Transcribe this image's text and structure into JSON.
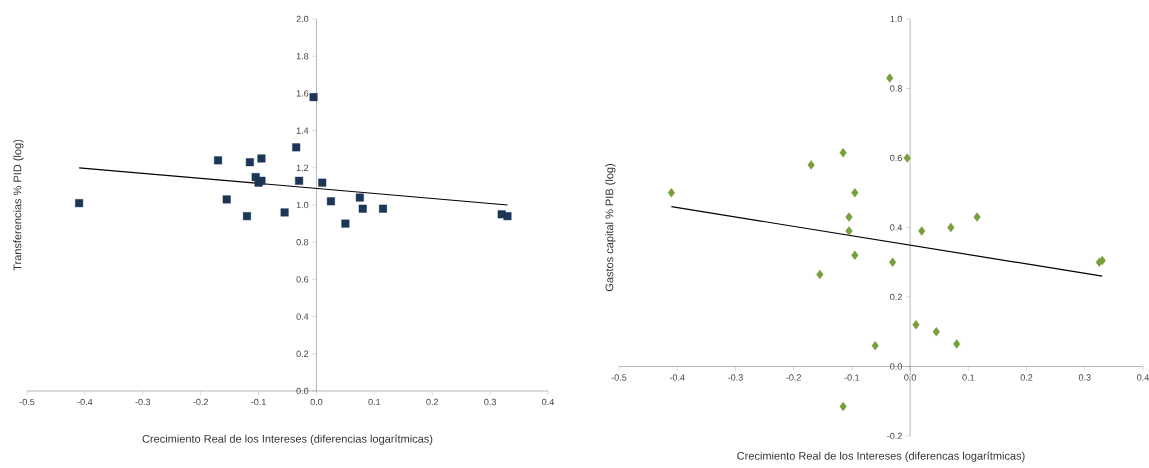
{
  "chart_data": [
    {
      "type": "scatter",
      "xlabel": "Crecimiento Real de los Intereses  (diferencias logarítmicas)",
      "ylabel": "Transferencias  %  PID (log)",
      "xlim": [
        -0.5,
        0.4
      ],
      "ylim": [
        0,
        2
      ],
      "xticks": [
        {
          "value": -0.5,
          "label": "-0.5"
        },
        {
          "value": -0.4,
          "label": "-0.4"
        },
        {
          "value": -0.3,
          "label": "-0.3"
        },
        {
          "value": -0.2,
          "label": "-0.2"
        },
        {
          "value": -0.1,
          "label": "-0.1"
        },
        {
          "value": 0,
          "label": "0.0"
        },
        {
          "value": 0.1,
          "label": "0.1"
        },
        {
          "value": 0.2,
          "label": "0.2"
        },
        {
          "value": 0.3,
          "label": "0.3"
        },
        {
          "value": 0.4,
          "label": "0.4"
        }
      ],
      "yticks": [
        {
          "value": 0,
          "label": "0.0"
        },
        {
          "value": 0.2,
          "label": "0.2"
        },
        {
          "value": 0.4,
          "label": "0.4"
        },
        {
          "value": 0.6,
          "label": "0.6"
        },
        {
          "value": 0.8,
          "label": "0.8"
        },
        {
          "value": 1,
          "label": "1.0"
        },
        {
          "value": 1.2,
          "label": "1.2"
        },
        {
          "value": 1.4,
          "label": "1.4"
        },
        {
          "value": 1.6,
          "label": "1.6"
        },
        {
          "value": 1.8,
          "label": "1.8"
        },
        {
          "value": 2,
          "label": "2.0"
        }
      ],
      "series": [
        {
          "marker": "square",
          "color": "#1b3656",
          "x": [
            -0.41,
            -0.17,
            -0.155,
            -0.12,
            -0.115,
            -0.105,
            -0.1,
            -0.095,
            -0.095,
            -0.055,
            -0.035,
            -0.03,
            -0.005,
            0.01,
            0.025,
            0.05,
            0.075,
            0.08,
            0.115,
            0.32,
            0.33
          ],
          "values": [
            1.01,
            1.24,
            1.03,
            0.94,
            1.23,
            1.15,
            1.12,
            1.25,
            1.13,
            0.96,
            1.31,
            1.13,
            1.58,
            1.12,
            1.02,
            0.9,
            1.04,
            0.98,
            0.98,
            0.95,
            0.94
          ]
        },
        {
          "type": "line",
          "color": "#000000",
          "x": [
            -0.41,
            0.33
          ],
          "values": [
            1.2,
            1.0
          ]
        }
      ]
    },
    {
      "type": "scatter",
      "xlabel": "Crecimiento Real de los Intereses (diferencas logarítmicas)",
      "ylabel": "Gastos capital % PIB (log)",
      "xlim": [
        -0.5,
        0.4
      ],
      "ylim": [
        -0.2,
        1
      ],
      "xticks": [
        {
          "value": -0.5,
          "label": "-0.5"
        },
        {
          "value": -0.4,
          "label": "-0.4"
        },
        {
          "value": -0.3,
          "label": "-0.3"
        },
        {
          "value": -0.2,
          "label": "-0.2"
        },
        {
          "value": -0.1,
          "label": "-0.1"
        },
        {
          "value": 0,
          "label": "0.0"
        },
        {
          "value": 0.1,
          "label": "0.1"
        },
        {
          "value": 0.2,
          "label": "0.2"
        },
        {
          "value": 0.3,
          "label": "0.3"
        },
        {
          "value": 0.4,
          "label": "0.4"
        }
      ],
      "yticks": [
        {
          "value": -0.2,
          "label": "-0.2"
        },
        {
          "value": 0,
          "label": "0.0"
        },
        {
          "value": 0.2,
          "label": "0.2"
        },
        {
          "value": 0.4,
          "label": "0.4"
        },
        {
          "value": 0.6,
          "label": "0.6"
        },
        {
          "value": 0.8,
          "label": "0.8"
        },
        {
          "value": 1,
          "label": "1.0"
        }
      ],
      "series": [
        {
          "marker": "diamond",
          "color": "#77a03c",
          "x": [
            -0.41,
            -0.17,
            -0.155,
            -0.115,
            -0.105,
            -0.105,
            -0.095,
            -0.095,
            -0.115,
            -0.06,
            -0.035,
            -0.03,
            -0.005,
            0.01,
            0.02,
            0.045,
            0.07,
            0.08,
            0.115,
            0.325,
            0.33
          ],
          "values": [
            0.5,
            0.58,
            0.265,
            0.615,
            0.43,
            0.39,
            0.5,
            0.32,
            -0.115,
            0.06,
            0.83,
            0.3,
            0.6,
            0.12,
            0.39,
            0.1,
            0.4,
            0.065,
            0.43,
            0.3,
            0.305
          ]
        },
        {
          "type": "line",
          "color": "#000000",
          "x": [
            -0.41,
            0.33
          ],
          "values": [
            0.46,
            0.26
          ]
        }
      ]
    }
  ]
}
